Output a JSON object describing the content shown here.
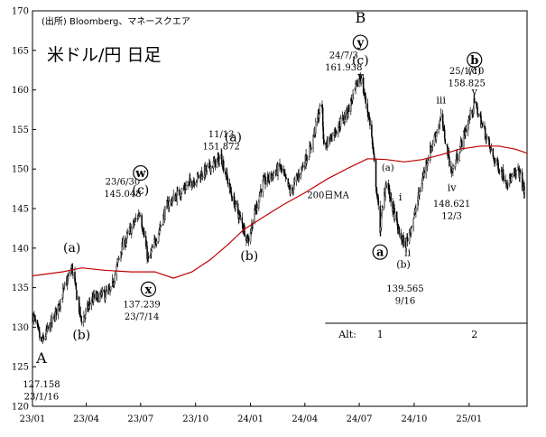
{
  "chart_data": {
    "type": "candlestick",
    "source_note": "(出所) Bloomberg、マネースクエア",
    "title": "米ドル/円 日足",
    "ylim": [
      120,
      170
    ],
    "y_ticks": [
      120,
      125,
      130,
      135,
      140,
      145,
      150,
      155,
      160,
      165,
      170
    ],
    "x_range": [
      "2023-01-01",
      "2025-04-08"
    ],
    "x_ticks": [
      {
        "date": "2023-01-01",
        "label": "23/01"
      },
      {
        "date": "2023-04-01",
        "label": "23/04"
      },
      {
        "date": "2023-07-01",
        "label": "23/07"
      },
      {
        "date": "2023-10-01",
        "label": "23/10"
      },
      {
        "date": "2024-01-01",
        "label": "24/01"
      },
      {
        "date": "2024-04-01",
        "label": "24/04"
      },
      {
        "date": "2024-07-01",
        "label": "24/07"
      },
      {
        "date": "2024-10-01",
        "label": "24/10"
      },
      {
        "date": "2025-01-01",
        "label": "25/01"
      }
    ],
    "grid": false,
    "price_anchors": [
      {
        "date": "2023-01-02",
        "value": 131.5
      },
      {
        "date": "2023-01-16",
        "value": 128.0
      },
      {
        "date": "2023-02-05",
        "value": 131.0
      },
      {
        "date": "2023-03-08",
        "value": 137.5
      },
      {
        "date": "2023-03-24",
        "value": 130.6
      },
      {
        "date": "2023-04-10",
        "value": 133.5
      },
      {
        "date": "2023-05-12",
        "value": 134.5
      },
      {
        "date": "2023-05-30",
        "value": 140.0
      },
      {
        "date": "2023-06-30",
        "value": 144.6
      },
      {
        "date": "2023-07-14",
        "value": 138.3
      },
      {
        "date": "2023-08-15",
        "value": 145.5
      },
      {
        "date": "2023-09-15",
        "value": 147.8
      },
      {
        "date": "2023-10-20",
        "value": 149.9
      },
      {
        "date": "2023-11-13",
        "value": 151.5
      },
      {
        "date": "2023-12-01",
        "value": 146.5
      },
      {
        "date": "2023-12-28",
        "value": 141.0
      },
      {
        "date": "2024-01-20",
        "value": 148.0
      },
      {
        "date": "2024-02-20",
        "value": 150.2
      },
      {
        "date": "2024-03-08",
        "value": 147.0
      },
      {
        "date": "2024-04-10",
        "value": 152.5
      },
      {
        "date": "2024-04-29",
        "value": 158.5
      },
      {
        "date": "2024-05-03",
        "value": 152.8
      },
      {
        "date": "2024-06-10",
        "value": 157.0
      },
      {
        "date": "2024-07-03",
        "value": 161.8
      },
      {
        "date": "2024-07-20",
        "value": 155.5
      },
      {
        "date": "2024-08-05",
        "value": 142.5
      },
      {
        "date": "2024-08-15",
        "value": 148.5
      },
      {
        "date": "2024-09-05",
        "value": 142.0
      },
      {
        "date": "2024-09-16",
        "value": 140.3
      },
      {
        "date": "2024-10-01",
        "value": 144.0
      },
      {
        "date": "2024-10-20",
        "value": 150.5
      },
      {
        "date": "2024-11-15",
        "value": 156.5
      },
      {
        "date": "2024-12-03",
        "value": 149.5
      },
      {
        "date": "2025-01-10",
        "value": 158.4
      },
      {
        "date": "2025-02-10",
        "value": 151.5
      },
      {
        "date": "2025-03-05",
        "value": 148.5
      },
      {
        "date": "2025-03-15",
        "value": 148.9
      },
      {
        "date": "2025-03-25",
        "value": 149.8
      },
      {
        "date": "2025-04-04",
        "value": 147.0
      }
    ],
    "ma_series": {
      "name": "200日MA",
      "color": "#c00000",
      "points": [
        {
          "date": "2023-01-01",
          "value": 136.5
        },
        {
          "date": "2023-02-20",
          "value": 137.0
        },
        {
          "date": "2023-03-25",
          "value": 137.5
        },
        {
          "date": "2023-05-01",
          "value": 137.2
        },
        {
          "date": "2023-06-15",
          "value": 137.0
        },
        {
          "date": "2023-07-25",
          "value": 137.0
        },
        {
          "date": "2023-08-25",
          "value": 136.2
        },
        {
          "date": "2023-09-25",
          "value": 137.0
        },
        {
          "date": "2023-10-25",
          "value": 138.5
        },
        {
          "date": "2023-11-25",
          "value": 140.5
        },
        {
          "date": "2023-12-20",
          "value": 142.3
        },
        {
          "date": "2024-01-20",
          "value": 143.8
        },
        {
          "date": "2024-02-25",
          "value": 145.5
        },
        {
          "date": "2024-04-01",
          "value": 147.0
        },
        {
          "date": "2024-05-10",
          "value": 148.8
        },
        {
          "date": "2024-06-15",
          "value": 150.2
        },
        {
          "date": "2024-07-15",
          "value": 151.3
        },
        {
          "date": "2024-08-15",
          "value": 151.2
        },
        {
          "date": "2024-09-15",
          "value": 150.9
        },
        {
          "date": "2024-10-15",
          "value": 151.2
        },
        {
          "date": "2024-11-15",
          "value": 151.8
        },
        {
          "date": "2024-12-15",
          "value": 152.5
        },
        {
          "date": "2025-01-20",
          "value": 152.9
        },
        {
          "date": "2025-02-20",
          "value": 152.9
        },
        {
          "date": "2025-03-20",
          "value": 152.5
        },
        {
          "date": "2025-04-08",
          "value": 152.0
        }
      ]
    },
    "annotations": [
      {
        "id": "ann-A",
        "lines": [
          "A"
        ],
        "date": "2023-01-16",
        "value": 125.5,
        "size": 16
      },
      {
        "id": "ann-low-2023-01",
        "lines": [
          "127.158",
          "23/1/16"
        ],
        "date": "2023-01-16",
        "value": 122.4,
        "size": 10
      },
      {
        "id": "ann-a1",
        "lines": [
          "(a)"
        ],
        "date": "2023-03-08",
        "value": 139.5,
        "size": 14
      },
      {
        "id": "ann-b1",
        "lines": [
          "(b)"
        ],
        "date": "2023-03-24",
        "value": 128.5,
        "size": 14
      },
      {
        "id": "ann-high-2023-06",
        "lines": [
          "23/6/30",
          "145.048"
        ],
        "date": "2023-06-01",
        "value": 148.0,
        "size": 10
      },
      {
        "id": "ann-c1",
        "lines": [
          "(c)"
        ],
        "date": "2023-07-01",
        "value": 146.8,
        "size": 14
      },
      {
        "id": "ann-low-2023-07",
        "lines": [
          "137.239",
          "23/7/14"
        ],
        "date": "2023-07-03",
        "value": 132.5,
        "size": 10
      },
      {
        "id": "ann-high-2023-11",
        "lines": [
          "11/13",
          "151.872"
        ],
        "date": "2023-11-13",
        "value": 154.0,
        "size": 10
      },
      {
        "id": "ann-a2",
        "lines": [
          "(a)"
        ],
        "date": "2023-12-03",
        "value": 153.5,
        "size": 14
      },
      {
        "id": "ann-b2",
        "lines": [
          "(b)"
        ],
        "date": "2023-12-30",
        "value": 138.5,
        "size": 14
      },
      {
        "id": "ann-high-2024-07",
        "lines": [
          "24/7/3",
          "161.938"
        ],
        "date": "2024-06-05",
        "value": 164.0,
        "size": 10
      },
      {
        "id": "ann-B",
        "lines": [
          "B"
        ],
        "date": "2024-07-03",
        "value": 168.5,
        "size": 16
      },
      {
        "id": "ann-c2",
        "lines": [
          "(c)"
        ],
        "date": "2024-07-03",
        "value": 163.2,
        "size": 14
      },
      {
        "id": "ann-v1",
        "lines": [
          "v"
        ],
        "date": "2024-07-03",
        "value": 161.3,
        "size": 11
      },
      {
        "id": "ann-MA",
        "lines": [
          "200日MA"
        ],
        "date": "2024-05-10",
        "value": 146.3,
        "size": 10,
        "color": "#c00000"
      },
      {
        "id": "ann-a-sm",
        "lines": [
          "(a)"
        ],
        "date": "2024-08-18",
        "value": 149.8,
        "size": 10
      },
      {
        "id": "ann-i",
        "lines": [
          "i"
        ],
        "date": "2024-09-08",
        "value": 146.0,
        "size": 11
      },
      {
        "id": "ann-ii",
        "lines": [
          "ii"
        ],
        "date": "2024-09-20",
        "value": 139.0,
        "size": 11
      },
      {
        "id": "ann-b3",
        "lines": [
          "(b)"
        ],
        "date": "2024-09-13",
        "value": 137.5,
        "size": 11
      },
      {
        "id": "ann-low-2024-09",
        "lines": [
          "139.565",
          "9/16"
        ],
        "date": "2024-09-16",
        "value": 134.5,
        "size": 10
      },
      {
        "id": "ann-iii",
        "lines": [
          "iii"
        ],
        "date": "2024-11-15",
        "value": 158.3,
        "size": 11
      },
      {
        "id": "ann-iv",
        "lines": [
          "iv"
        ],
        "date": "2024-12-03",
        "value": 147.2,
        "size": 11
      },
      {
        "id": "ann-low-2024-12",
        "lines": [
          "148.621",
          "12/3"
        ],
        "date": "2024-12-03",
        "value": 145.2,
        "size": 10
      },
      {
        "id": "ann-high-2025-01",
        "lines": [
          "25/1/10",
          "158.825"
        ],
        "date": "2024-12-28",
        "value": 162.0,
        "size": 10
      },
      {
        "id": "ann-c3",
        "lines": [
          "(c)"
        ],
        "date": "2025-01-10",
        "value": 162.0,
        "size": 11
      },
      {
        "id": "ann-v2",
        "lines": [
          "v"
        ],
        "date": "2025-01-10",
        "value": 159.4,
        "size": 11
      }
    ],
    "circled_labels": [
      {
        "id": "circ-w",
        "text": "w",
        "date": "2023-07-01",
        "value": 149.5
      },
      {
        "id": "circ-x",
        "text": "x",
        "date": "2023-07-14",
        "value": 134.8
      },
      {
        "id": "circ-y",
        "text": "y",
        "date": "2024-07-03",
        "value": 166.0
      },
      {
        "id": "circ-a",
        "text": "a",
        "date": "2024-08-05",
        "value": 139.5
      },
      {
        "id": "circ-b",
        "text": "b",
        "date": "2025-01-10",
        "value": 163.8
      }
    ],
    "alt_line": {
      "from_date": "2024-05-05",
      "to_date": "2025-04-08",
      "value": 130.5,
      "text": "Alt:",
      "labels": [
        {
          "text": "1",
          "date": "2024-08-05"
        },
        {
          "text": "2",
          "date": "2025-01-10"
        }
      ]
    }
  }
}
